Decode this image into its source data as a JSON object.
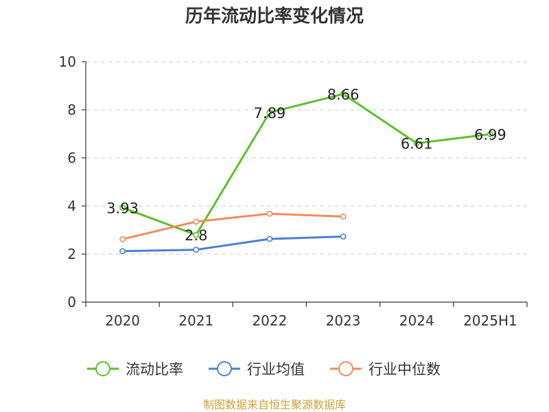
{
  "chart_data": {
    "type": "line",
    "title": "历年流动比率变化情况",
    "categories": [
      "2020",
      "2021",
      "2022",
      "2023",
      "2024",
      "2025H1"
    ],
    "ylim": [
      0,
      10
    ],
    "yticks": [
      0,
      2,
      4,
      6,
      8,
      10
    ],
    "grid": true,
    "legend_position": "bottom",
    "series": [
      {
        "name": "流动比率",
        "color": "#5cbf2a",
        "values": [
          3.93,
          2.8,
          7.89,
          8.66,
          6.61,
          6.99
        ],
        "labels": [
          "3.93",
          "2.8",
          "7.89",
          "8.66",
          "6.61",
          "6.99"
        ]
      },
      {
        "name": "行业均值",
        "color": "#4a7fd6",
        "values": [
          2.12,
          2.18,
          2.63,
          2.73,
          null,
          null
        ]
      },
      {
        "name": "行业中位数",
        "color": "#f58b5a",
        "values": [
          2.62,
          3.35,
          3.68,
          3.56,
          null,
          null
        ]
      }
    ]
  },
  "source_text": "制图数据来自恒生聚源数据库",
  "colors": {
    "source": "#c9a33a",
    "axis": "#333333",
    "grid": "#c8c8c8"
  }
}
